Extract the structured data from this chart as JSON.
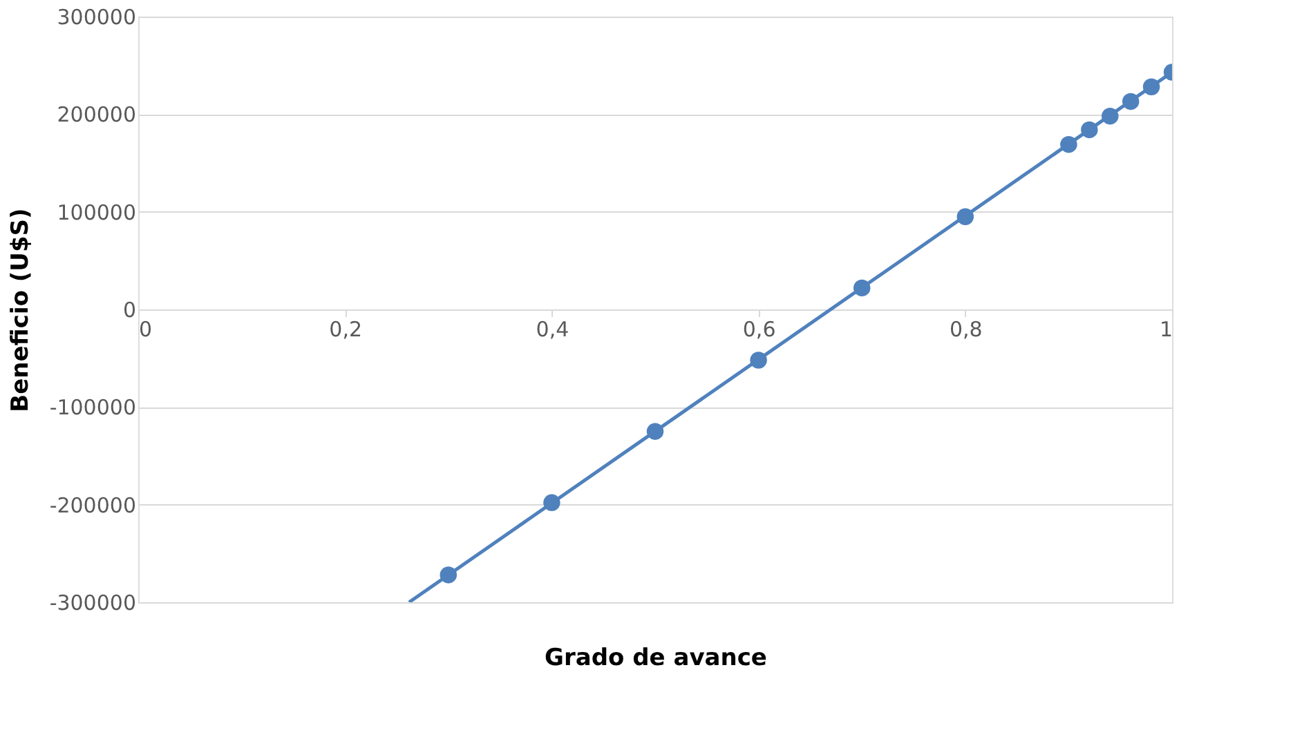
{
  "chart_data": {
    "type": "scatter",
    "xlabel": "Grado de avance",
    "ylabel": "Beneficio (U$S)",
    "x": [
      0.3,
      0.4,
      0.5,
      0.6,
      0.7,
      0.8,
      0.9,
      0.92,
      0.94,
      0.96,
      0.98,
      1.0
    ],
    "series": [
      {
        "color": "#4f81bd",
        "marker": "circle",
        "values": [
          -272000,
          -198000,
          -125000,
          -52000,
          22000,
          95000,
          169000,
          184000,
          198000,
          213000,
          228000,
          243000
        ]
      },
      {
        "type": "line",
        "color": "#4f81bd",
        "marker": "none",
        "x": [
          0.262,
          1.0
        ],
        "values": [
          -300000,
          243000
        ]
      }
    ],
    "xlim": [
      0,
      1
    ],
    "xticks": [
      0,
      {
        "value": 0.2,
        "label": "0,2"
      },
      {
        "value": 0.4,
        "label": "0,4"
      },
      {
        "value": 0.6,
        "label": "0,6"
      },
      {
        "value": 0.8,
        "label": "0,8"
      },
      1
    ],
    "ylim": [
      -300000,
      300000
    ],
    "yticks": [
      -300000,
      -200000,
      -100000,
      0,
      100000,
      200000,
      300000
    ],
    "grid": "y",
    "line_style": "solid"
  }
}
